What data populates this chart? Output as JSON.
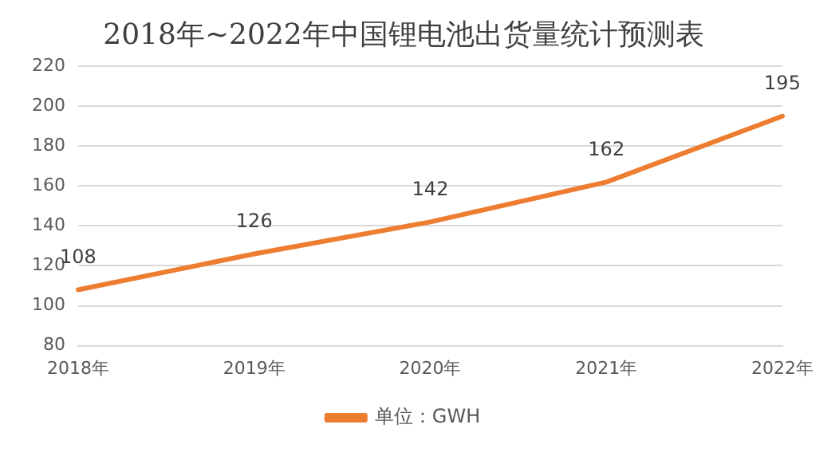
{
  "chart_data": {
    "type": "line",
    "title": "2018年~2022年中国锂电池出货量统计预测表",
    "categories": [
      "2018年",
      "2019年",
      "2020年",
      "2021年",
      "2022年"
    ],
    "series": [
      {
        "name": "单位：GWH",
        "color": "#ed7d31",
        "values": [
          108,
          126,
          142,
          162,
          195
        ]
      }
    ],
    "ylim": [
      80,
      220
    ],
    "yticks": [
      80,
      100,
      120,
      140,
      160,
      180,
      200,
      220
    ],
    "grid": "y",
    "legend": "bottom",
    "marker": "none",
    "line_style": "solid",
    "data_labels": true
  }
}
